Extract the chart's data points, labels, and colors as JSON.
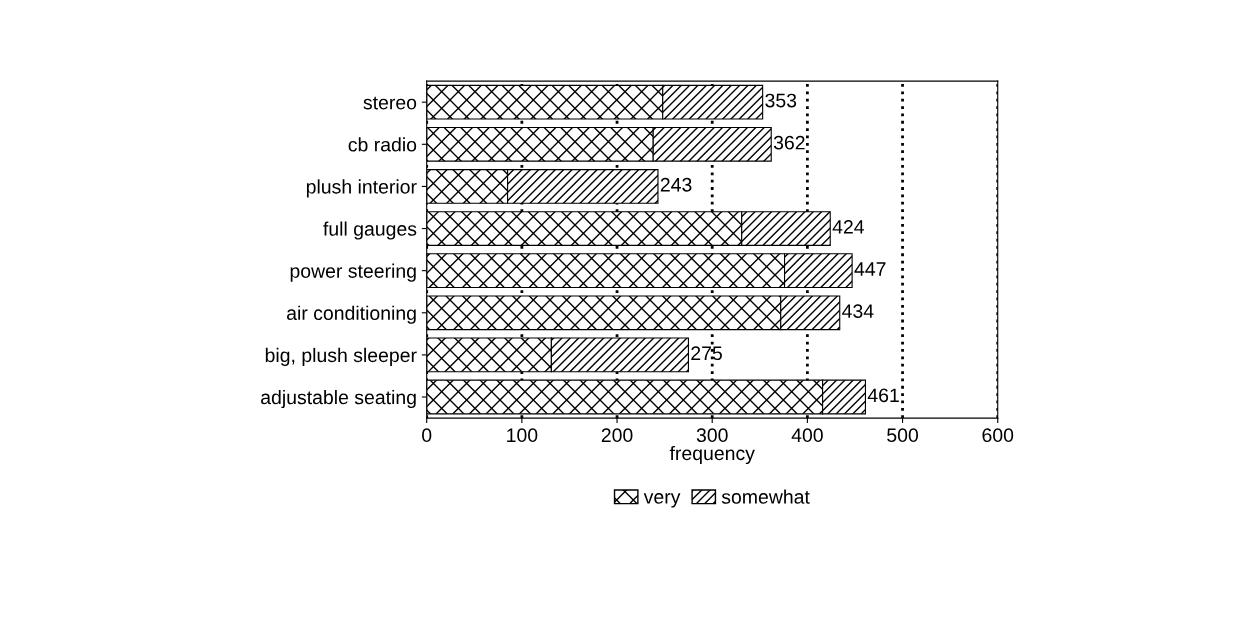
{
  "chart_data": {
    "type": "bar",
    "orientation": "horizontal",
    "stacked": true,
    "xlabel": "frequency",
    "categories": [
      "stereo",
      "cb radio",
      "plush interior",
      "full gauges",
      "power steering",
      "air conditioning",
      "big, plush sleeper",
      "adjustable seating"
    ],
    "series": [
      {
        "name": "very",
        "color": "#000000",
        "values": [
          248,
          238,
          85,
          331,
          376,
          372,
          131,
          416
        ]
      },
      {
        "name": "somewhat",
        "color": "#000000",
        "values": [
          105,
          124,
          158,
          93,
          71,
          62,
          144,
          45
        ]
      }
    ],
    "totals": [
      "353",
      "362",
      "243",
      "424",
      "447",
      "434",
      "275",
      "461"
    ],
    "xlim": [
      0,
      600
    ],
    "xticks": [
      0,
      100,
      200,
      300,
      400,
      500,
      600
    ],
    "grid": "x",
    "legend": "bottom"
  }
}
